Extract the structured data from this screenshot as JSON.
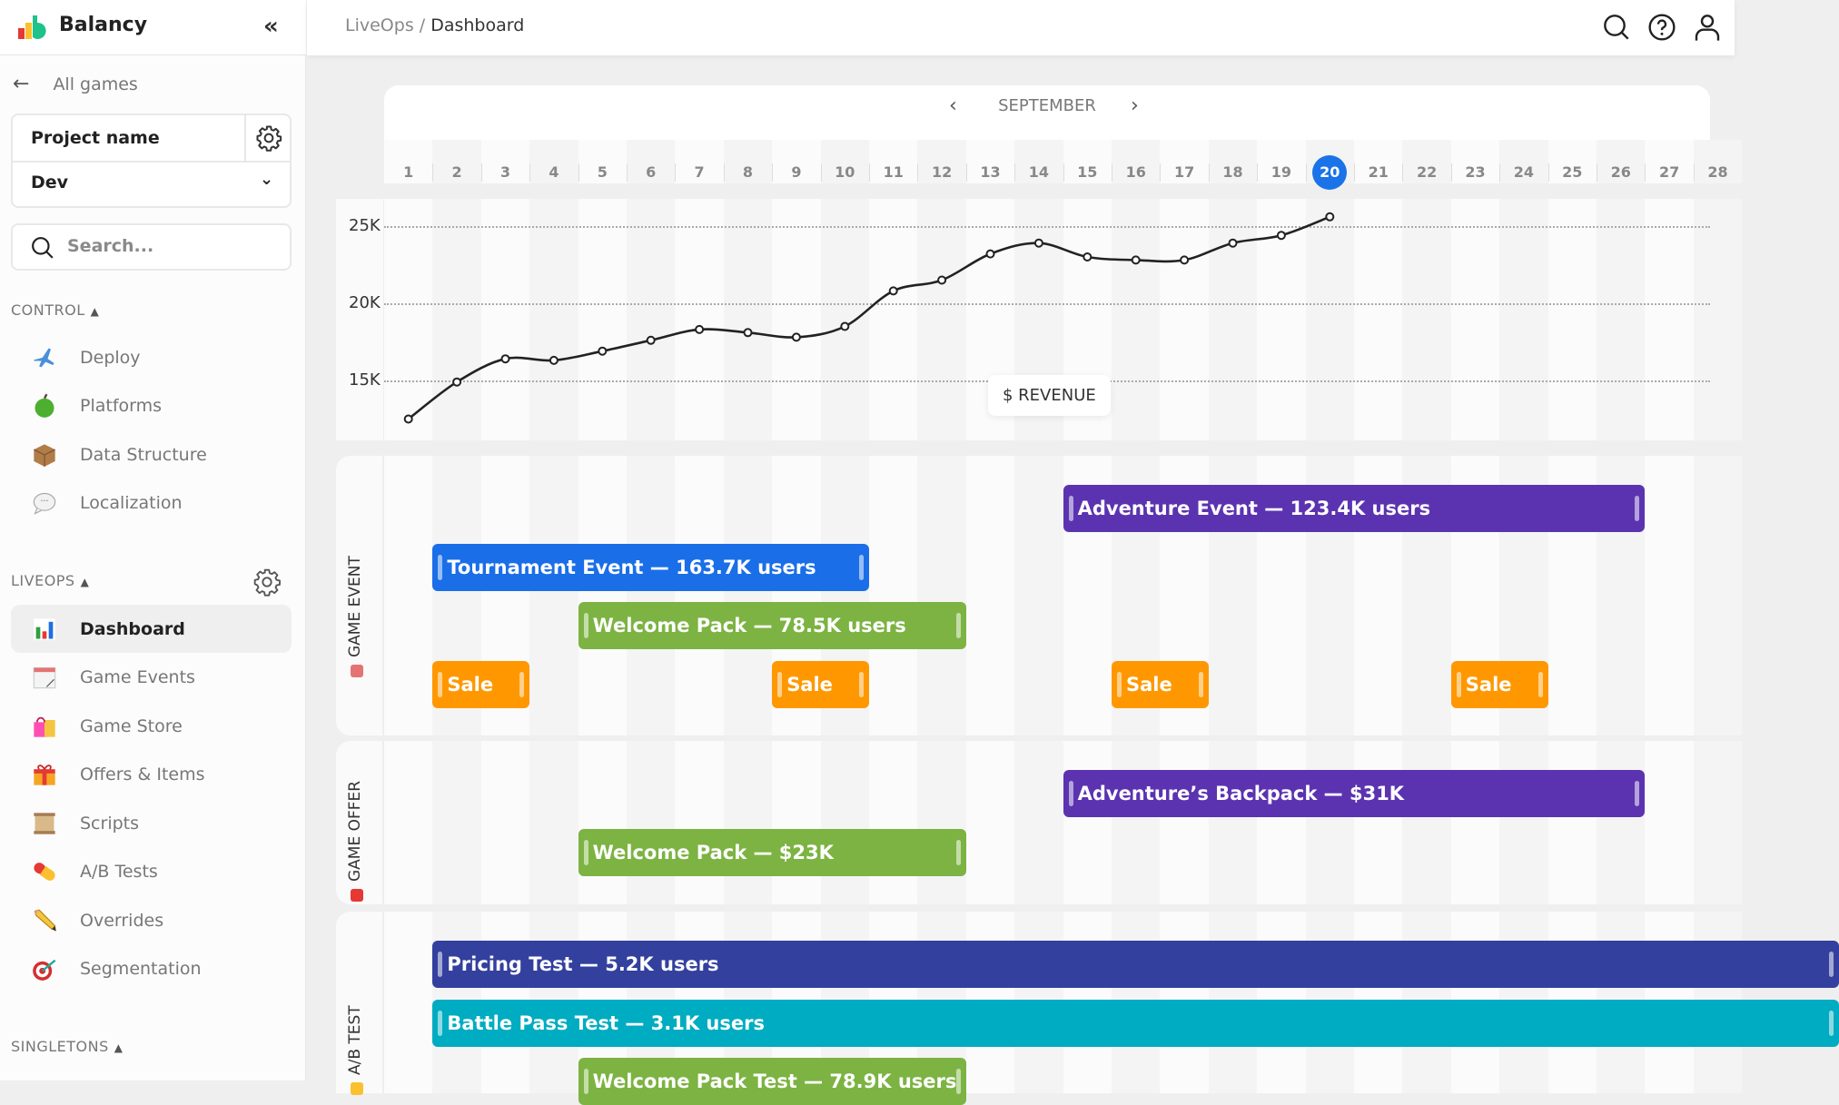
{
  "app": {
    "name": "Balancy"
  },
  "header": {
    "breadcrumb_parent": "LiveOps",
    "breadcrumb_sep": " / ",
    "breadcrumb_current": "Dashboard"
  },
  "sidebar": {
    "back_label": "All games",
    "project_name": "Project name",
    "environment": "Dev",
    "search_placeholder": "Search...",
    "control": {
      "title": "CONTROL",
      "items": [
        {
          "label": "Deploy",
          "icon": "airplane-icon"
        },
        {
          "label": "Platforms",
          "icon": "apple-icon"
        },
        {
          "label": "Data Structure",
          "icon": "box-icon"
        },
        {
          "label": "Localization",
          "icon": "speech-bubble-icon"
        }
      ]
    },
    "liveops": {
      "title": "LIVEOPS",
      "items": [
        {
          "label": "Dashboard",
          "icon": "bar-chart-icon",
          "active": true
        },
        {
          "label": "Game Events",
          "icon": "calendar-icon"
        },
        {
          "label": "Game Store",
          "icon": "shopping-bags-icon"
        },
        {
          "label": "Offers & Items",
          "icon": "gift-icon"
        },
        {
          "label": "Scripts",
          "icon": "scroll-icon"
        },
        {
          "label": "A/B Tests",
          "icon": "pill-icon"
        },
        {
          "label": "Overrides",
          "icon": "pencil-icon"
        },
        {
          "label": "Segmentation",
          "icon": "target-icon"
        }
      ]
    },
    "singletons": {
      "title": "SINGLETONS"
    }
  },
  "calendar": {
    "month": "SEPTEMBER",
    "days": [
      "1",
      "2",
      "3",
      "4",
      "5",
      "6",
      "7",
      "8",
      "9",
      "10",
      "11",
      "12",
      "13",
      "14",
      "15",
      "16",
      "17",
      "18",
      "19",
      "20",
      "21",
      "22",
      "23",
      "24",
      "25",
      "26",
      "27",
      "28"
    ],
    "selected_day": 20,
    "selected_color": "#1a73e8"
  },
  "chart_data": {
    "type": "line",
    "label": "$ REVENUE",
    "x": [
      1,
      2,
      3,
      4,
      5,
      6,
      7,
      8,
      9,
      10,
      11,
      12,
      13,
      14,
      15,
      16,
      17,
      18,
      19,
      20
    ],
    "y": [
      12.5,
      14.9,
      16.4,
      16.3,
      16.9,
      17.6,
      18.3,
      18.1,
      17.8,
      18.5,
      20.8,
      21.5,
      23.2,
      23.9,
      23.0,
      22.8,
      22.8,
      23.9,
      24.4,
      25.6
    ],
    "y_unit": "K",
    "yticks": [
      {
        "value": 15,
        "label": "15K"
      },
      {
        "value": 20,
        "label": "20K"
      },
      {
        "value": 25,
        "label": "25K"
      }
    ],
    "grid": "horizontal dashed"
  },
  "timeline": {
    "sections": [
      {
        "title": "GAME EVENT",
        "icon": "calendar-icon",
        "bars": [
          {
            "label": "Adventure Event — 123.4K users",
            "start": 15,
            "end": 26,
            "row": 0,
            "color": "#5b33b0"
          },
          {
            "label": "Tournament Event — 163.7K users",
            "start": 2,
            "end": 10,
            "row": 1,
            "color": "#1a6ee8"
          },
          {
            "label": "Welcome Pack — 78.5K users",
            "start": 5,
            "end": 12,
            "row": 2,
            "color": "#7cb342"
          },
          {
            "label": "Sale",
            "start": 2,
            "end": 3,
            "row": 3,
            "color": "#ff9800"
          },
          {
            "label": "Sale",
            "start": 9,
            "end": 10,
            "row": 3,
            "color": "#ff9800"
          },
          {
            "label": "Sale",
            "start": 16,
            "end": 17,
            "row": 3,
            "color": "#ff9800"
          },
          {
            "label": "Sale",
            "start": 23,
            "end": 24,
            "row": 3,
            "color": "#ff9800"
          }
        ]
      },
      {
        "title": "GAME OFFER",
        "icon": "gift-icon",
        "bars": [
          {
            "label": "Adventure’s Backpack — $31K",
            "start": 15,
            "end": 26,
            "row": 0,
            "color": "#5b33b0"
          },
          {
            "label": "Welcome Pack — $23K",
            "start": 5,
            "end": 12,
            "row": 1,
            "color": "#7cb342"
          }
        ]
      },
      {
        "title": "A/B TEST",
        "icon": "pill-icon",
        "bars": [
          {
            "label": "Pricing Test — 5.2K users",
            "start": 2,
            "end": 30,
            "row": 0,
            "color": "#33409e"
          },
          {
            "label": "Battle Pass Test — 3.1K users",
            "start": 2,
            "end": 30,
            "row": 1,
            "color": "#00acc1"
          },
          {
            "label": "Welcome Pack Test — 78.9K users",
            "start": 5,
            "end": 12,
            "row": 2,
            "color": "#7cb342"
          }
        ]
      }
    ]
  }
}
